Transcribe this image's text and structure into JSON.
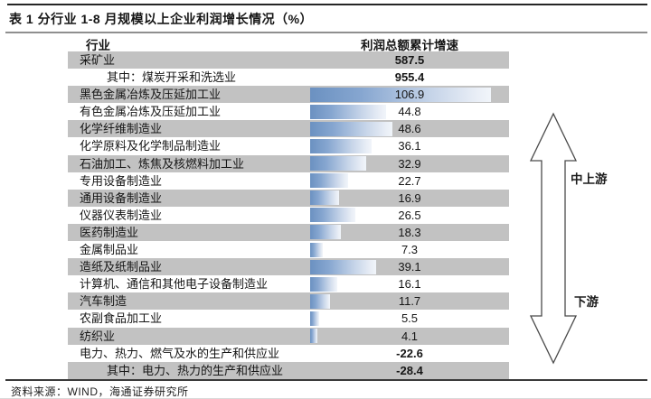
{
  "title": "表 1 分行业 1-8 月规模以上企业利润增长情况（%）",
  "source": "资料来源：WIND，海通证券研究所",
  "columns": {
    "industry": "行业",
    "value": "利润总额累计增速"
  },
  "annotations": {
    "upstream": "中上游",
    "downstream": "下游"
  },
  "colors": {
    "bar_gradient_start": "#6b91c1",
    "bar_gradient_end": "#f1f5fa",
    "row_alt_background": "#c2c2c2",
    "rule_dark": "#262626",
    "rule_gray": "#8f8f8f"
  },
  "chart_data": {
    "type": "bar",
    "title": "表 1 分行业 1-8 月规模以上企业利润增长情况（%）",
    "orientation": "horizontal",
    "value_label": "利润总额累计增速",
    "category_label": "行业",
    "bar_scale_note": "bars shown only for values between 0 and ~110; extreme and negative values shown as numbers only",
    "rows": [
      {
        "label": "采矿业",
        "value": 587.5,
        "bar": false,
        "bold": true,
        "indent": false
      },
      {
        "label": "其中：煤炭开采和洗选业",
        "value": 955.4,
        "bar": false,
        "bold": true,
        "indent": true
      },
      {
        "label": "黑色金属冶炼及压延加工业",
        "value": 106.9,
        "bar": true,
        "bold": false,
        "indent": false
      },
      {
        "label": "有色金属冶炼及压延加工业",
        "value": 44.8,
        "bar": true,
        "bold": false,
        "indent": false
      },
      {
        "label": "化学纤维制造业",
        "value": 48.6,
        "bar": true,
        "bold": false,
        "indent": false
      },
      {
        "label": "化学原料及化学制品制造业",
        "value": 36.1,
        "bar": true,
        "bold": false,
        "indent": false
      },
      {
        "label": "石油加工、炼焦及核燃料加工业",
        "value": 32.9,
        "bar": true,
        "bold": false,
        "indent": false
      },
      {
        "label": "专用设备制造业",
        "value": 22.7,
        "bar": true,
        "bold": false,
        "indent": false
      },
      {
        "label": "通用设备制造业",
        "value": 16.9,
        "bar": true,
        "bold": false,
        "indent": false
      },
      {
        "label": "仪器仪表制造业",
        "value": 26.5,
        "bar": true,
        "bold": false,
        "indent": false
      },
      {
        "label": "医药制造业",
        "value": 18.3,
        "bar": true,
        "bold": false,
        "indent": false
      },
      {
        "label": "金属制品业",
        "value": 7.3,
        "bar": true,
        "bold": false,
        "indent": false
      },
      {
        "label": "造纸及纸制品业",
        "value": 39.1,
        "bar": true,
        "bold": false,
        "indent": false
      },
      {
        "label": "计算机、通信和其他电子设备制造业",
        "value": 16.1,
        "bar": true,
        "bold": false,
        "indent": false
      },
      {
        "label": "汽车制造",
        "value": 11.7,
        "bar": true,
        "bold": false,
        "indent": false
      },
      {
        "label": "农副食品加工业",
        "value": 5.5,
        "bar": true,
        "bold": false,
        "indent": false
      },
      {
        "label": "纺织业",
        "value": 4.1,
        "bar": true,
        "bold": false,
        "indent": false
      },
      {
        "label": "电力、热力、燃气及水的生产和供应业",
        "value": -22.6,
        "bar": false,
        "bold": true,
        "indent": false
      },
      {
        "label": "其中：电力、热力的生产和供应业",
        "value": -28.4,
        "bar": false,
        "bold": true,
        "indent": true
      }
    ]
  }
}
